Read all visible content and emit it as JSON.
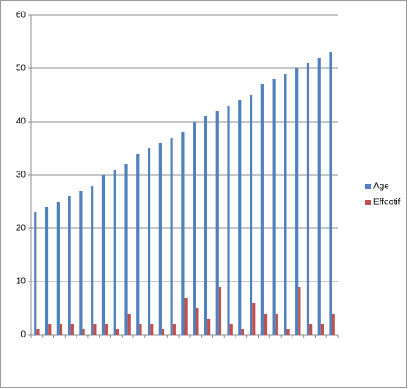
{
  "chart_data": {
    "type": "bar",
    "categories": [
      null,
      null,
      null,
      null,
      null,
      null,
      null,
      null,
      null,
      null,
      null,
      null,
      null,
      null,
      null,
      null,
      null,
      null,
      null,
      null,
      null,
      null,
      null,
      null,
      null,
      null,
      null
    ],
    "series": [
      {
        "name": "Age",
        "color": "#4f81bd",
        "values": [
          23,
          24,
          25,
          26,
          27,
          28,
          30,
          31,
          32,
          34,
          35,
          36,
          37,
          38,
          40,
          41,
          42,
          43,
          44,
          45,
          47,
          48,
          49,
          50,
          51,
          52,
          53
        ]
      },
      {
        "name": "Effectif",
        "color": "#c0504d",
        "values": [
          1,
          2,
          2,
          2,
          1,
          2,
          2,
          1,
          4,
          2,
          2,
          1,
          2,
          7,
          5,
          3,
          9,
          2,
          1,
          6,
          4,
          4,
          1,
          9,
          2,
          2,
          4
        ]
      }
    ],
    "ylim": [
      0,
      60
    ],
    "yticks": [
      0,
      10,
      20,
      30,
      40,
      50,
      60
    ],
    "grid": true,
    "legend": "right"
  }
}
